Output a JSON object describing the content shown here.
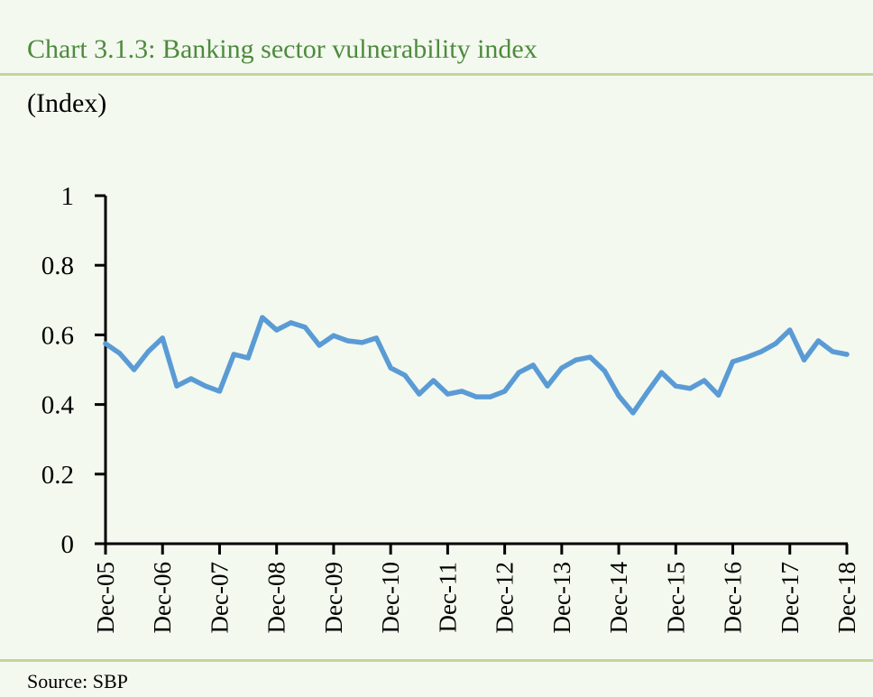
{
  "chart_data": {
    "type": "line",
    "title": "Chart 3.1.3: Banking sector vulnerability index",
    "ylabel": "(Index)",
    "xlabel": "",
    "source": "Source:  SBP",
    "ylim": [
      0,
      1
    ],
    "yticks": [
      "0",
      "0.2",
      "0.4",
      "0.6",
      "0.8",
      "1"
    ],
    "ytick_values": [
      0,
      0.2,
      0.4,
      0.6,
      0.8,
      1
    ],
    "xtick_labels": [
      "Dec-05",
      "Dec-06",
      "Dec-07",
      "Dec-08",
      "Dec-09",
      "Dec-10",
      "Dec-11",
      "Dec-12",
      "Dec-13",
      "Dec-14",
      "Dec-15",
      "Dec-16",
      "Dec-17",
      "Dec-18"
    ],
    "frequency": "quarterly",
    "grid": false,
    "color": "#5b9bd5",
    "series": [
      {
        "name": "Banking sector vulnerability index",
        "values": [
          0.575,
          0.547,
          0.5,
          0.552,
          0.591,
          0.453,
          0.474,
          0.453,
          0.438,
          0.544,
          0.534,
          0.65,
          0.614,
          0.635,
          0.622,
          0.57,
          0.598,
          0.583,
          0.578,
          0.591,
          0.505,
          0.484,
          0.43,
          0.469,
          0.43,
          0.438,
          0.422,
          0.422,
          0.438,
          0.492,
          0.513,
          0.453,
          0.505,
          0.528,
          0.536,
          0.497,
          0.425,
          0.376,
          0.435,
          0.492,
          0.453,
          0.446,
          0.469,
          0.427,
          0.523,
          0.536,
          0.552,
          0.575,
          0.614,
          0.528,
          0.583,
          0.552,
          0.544
        ]
      }
    ]
  }
}
